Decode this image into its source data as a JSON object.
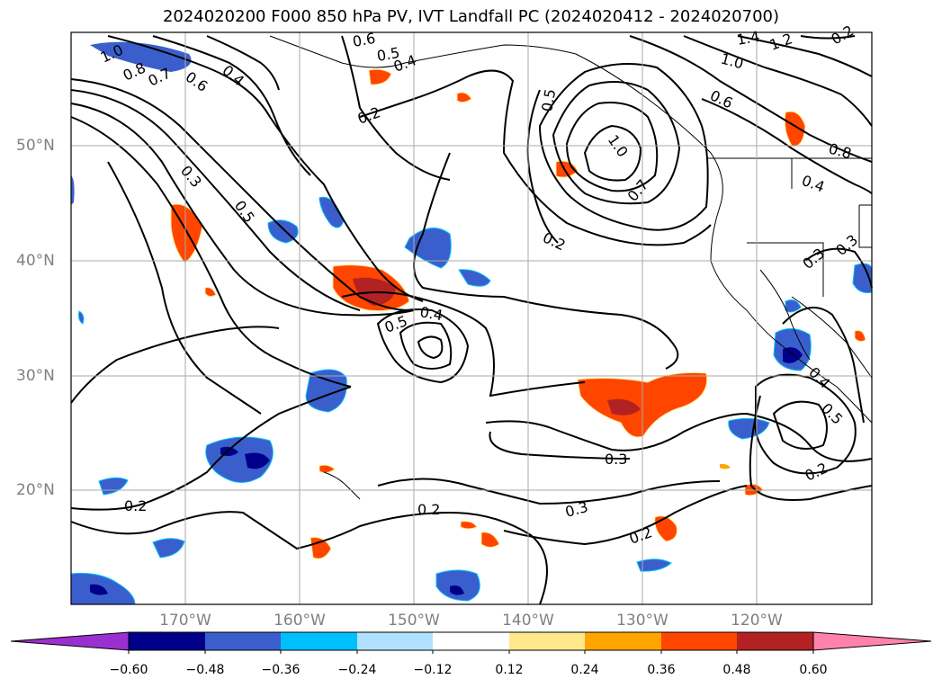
{
  "title": "2024020200 F000 850 hPa PV, IVT Landfall PC (2024020412 - 2024020700)",
  "lat_labels": [
    "50°N",
    "40°N",
    "30°N",
    "20°N"
  ],
  "lon_labels": [
    "170°W",
    "160°W",
    "150°W",
    "140°W",
    "130°W",
    "120°W"
  ],
  "colorbar": {
    "ticks": [
      "−0.60",
      "−0.48",
      "−0.36",
      "−0.24",
      "−0.12",
      "0.12",
      "0.24",
      "0.36",
      "0.48",
      "0.60"
    ],
    "colors": [
      "#9b30d0",
      "#00008b",
      "#3a5fcd",
      "#00bfff",
      "#b0e2ff",
      "#ffffff",
      "#ffe88c",
      "#ffa500",
      "#ff4500",
      "#b22222",
      "#ff82ab"
    ]
  },
  "contour_labels": [
    "1.0",
    "0.8",
    "0.7",
    "0.6",
    "0.4",
    "0.3",
    "0.5",
    "0.2",
    "0.6",
    "0.5",
    "0.4",
    "0.2",
    "1.4",
    "1.2",
    "1.0",
    "0.6",
    "0.5",
    "1.0",
    "0.7",
    "0.8",
    "0.4",
    "0.2",
    "0.5",
    "0.4",
    "0.3",
    "0.2",
    "0.3",
    "0.2",
    "0.2",
    "0.3",
    "0.4",
    "0.5",
    "0.2",
    "0.3"
  ]
}
